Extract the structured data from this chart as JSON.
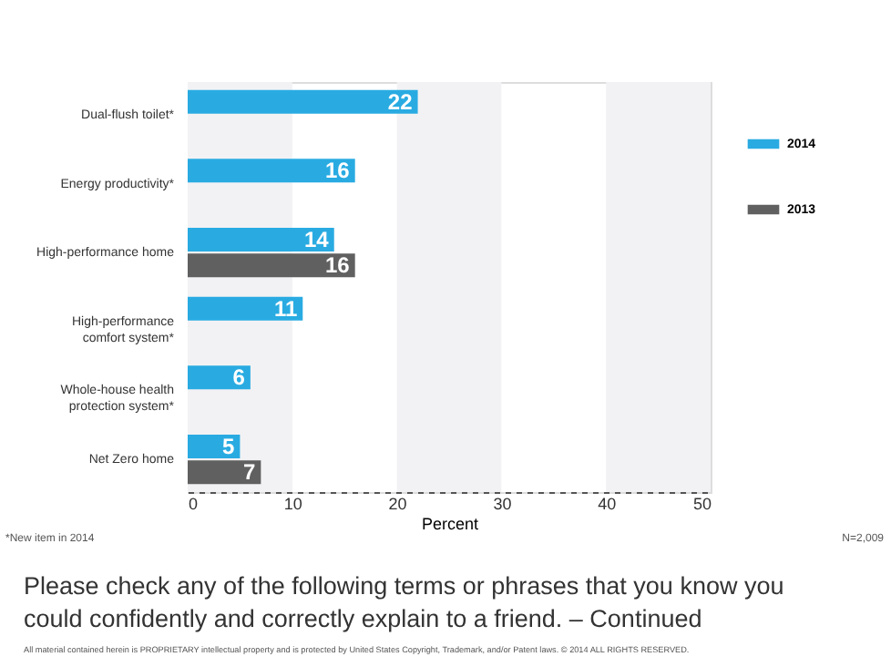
{
  "chart_data": {
    "type": "bar",
    "orientation": "horizontal",
    "title": "Please check any of the following terms or phrases that you know you could confidently and correctly explain to a friend. – Continued",
    "xlabel": "Percent",
    "categories": [
      "Dual-flush toilet*",
      "Energy productivity*",
      "High-performance home",
      "High-performance comfort system*",
      "Whole-house health protection system*",
      "Net Zero home"
    ],
    "series": [
      {
        "name": "2014",
        "color": "#29abe2",
        "values": [
          22,
          16,
          14,
          11,
          6,
          5
        ]
      },
      {
        "name": "2013",
        "color": "#606060",
        "values": [
          null,
          null,
          16,
          null,
          null,
          7
        ]
      }
    ],
    "xlim": [
      0,
      50
    ],
    "xticks": [
      0,
      10,
      20,
      30,
      40,
      50
    ],
    "bands": [
      {
        "axis": "x",
        "from": 0,
        "to": 10,
        "color": "#f2f2f4"
      },
      {
        "axis": "x",
        "from": 20,
        "to": 30,
        "color": "#f2f2f4"
      },
      {
        "axis": "x",
        "from": 40,
        "to": 50,
        "color": "#f2f2f4"
      }
    ],
    "data_labels": true,
    "legend": "right",
    "annotations": [
      "*New item in 2014",
      "N=2,009",
      "All material contained herein is PROPRIETARY intellectual property and is protected by United States Copyright, Trademark, and/or Patent laws. © 2014 ALL RIGHTS RESERVED."
    ]
  }
}
